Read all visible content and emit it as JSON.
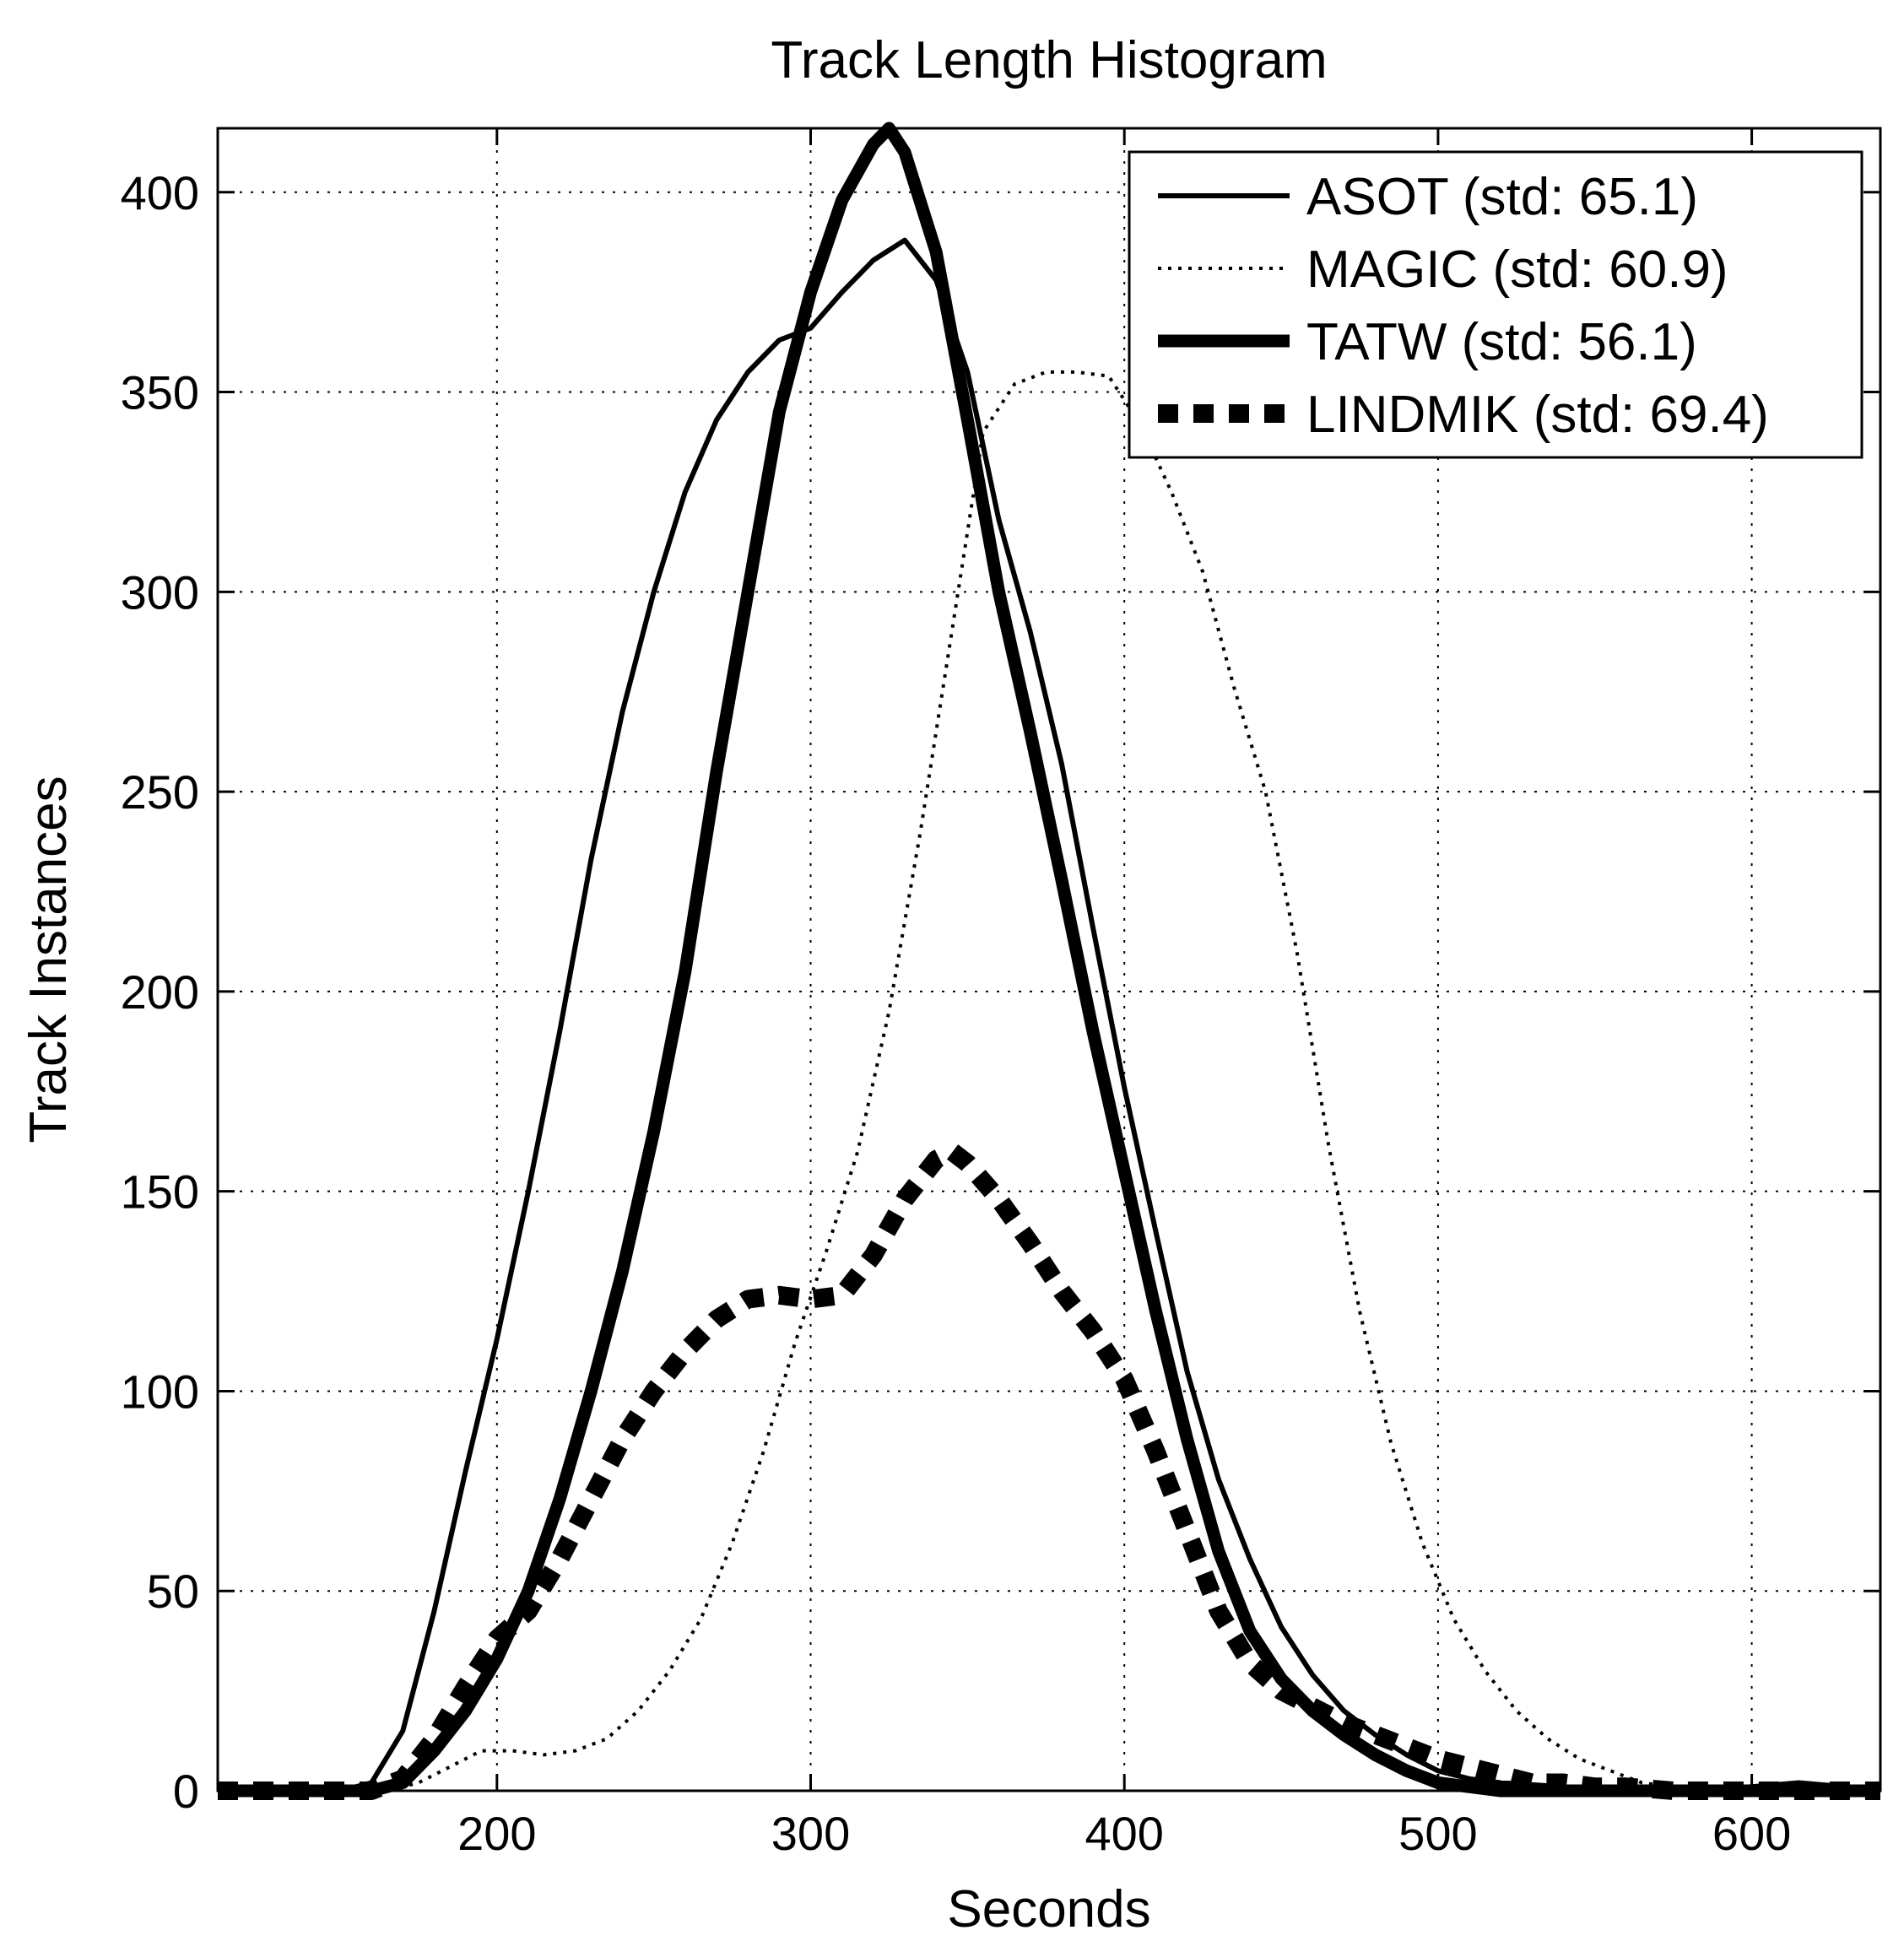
{
  "chart_data": {
    "type": "line",
    "title": "Track Length Histogram",
    "xlabel": "Seconds",
    "ylabel": "Track Instances",
    "xlim": [
      111,
      641
    ],
    "ylim": [
      0,
      416
    ],
    "xticks": [
      200,
      300,
      400,
      500,
      600
    ],
    "yticks": [
      0,
      50,
      100,
      150,
      200,
      250,
      300,
      350,
      400
    ],
    "grid": true,
    "legend_position": "top-right",
    "series": [
      {
        "name": "ASOT (std: 65.1)",
        "style": "solid-thin",
        "x": [
          111,
          150,
          160,
          170,
          180,
          190,
          200,
          210,
          220,
          230,
          240,
          250,
          260,
          270,
          280,
          290,
          300,
          310,
          320,
          330,
          340,
          350,
          360,
          370,
          380,
          390,
          400,
          410,
          420,
          430,
          440,
          450,
          460,
          470,
          480,
          490,
          500,
          510,
          520,
          540,
          560,
          580,
          600,
          615,
          630,
          641
        ],
        "y": [
          0,
          0,
          2,
          15,
          45,
          80,
          113,
          150,
          190,
          233,
          270,
          300,
          325,
          343,
          355,
          363,
          366,
          375,
          383,
          388,
          378,
          355,
          318,
          290,
          257,
          216,
          176,
          140,
          105,
          78,
          58,
          41,
          29,
          20,
          14,
          9,
          5,
          3,
          2,
          1,
          0,
          0,
          1,
          2,
          1,
          0
        ]
      },
      {
        "name": "MAGIC (std: 60.9)",
        "style": "dotted",
        "x": [
          111,
          165,
          175,
          185,
          195,
          205,
          215,
          225,
          235,
          245,
          255,
          265,
          275,
          285,
          295,
          305,
          315,
          325,
          335,
          345,
          355,
          365,
          375,
          385,
          395,
          405,
          415,
          425,
          435,
          445,
          455,
          465,
          475,
          485,
          495,
          505,
          515,
          525,
          535,
          545,
          555,
          565,
          575,
          585,
          600,
          641
        ],
        "y": [
          0,
          0,
          2,
          6,
          10,
          10,
          9,
          10,
          13,
          20,
          30,
          43,
          62,
          85,
          112,
          135,
          160,
          195,
          240,
          290,
          340,
          352,
          355,
          355,
          354,
          342,
          325,
          305,
          276,
          250,
          210,
          162,
          120,
          87,
          62,
          43,
          30,
          20,
          13,
          8,
          5,
          2,
          1,
          0,
          0,
          0
        ]
      },
      {
        "name": "TATW (std: 56.1)",
        "style": "solid-thick",
        "x": [
          111,
          160,
          170,
          180,
          190,
          200,
          210,
          220,
          230,
          240,
          250,
          260,
          270,
          280,
          290,
          300,
          310,
          320,
          325,
          330,
          340,
          350,
          360,
          370,
          380,
          390,
          400,
          410,
          420,
          430,
          440,
          450,
          460,
          470,
          480,
          490,
          500,
          510,
          520,
          530,
          641
        ],
        "y": [
          0,
          0,
          2,
          10,
          20,
          33,
          50,
          73,
          100,
          130,
          165,
          205,
          255,
          300,
          345,
          375,
          398,
          412,
          416,
          410,
          385,
          343,
          300,
          265,
          228,
          190,
          155,
          120,
          88,
          60,
          40,
          28,
          20,
          14,
          9,
          5,
          2,
          1,
          0,
          0,
          0
        ]
      },
      {
        "name": "LINDMIK (std: 69.4)",
        "style": "dashed-thick",
        "x": [
          111,
          160,
          170,
          180,
          190,
          200,
          210,
          220,
          230,
          240,
          250,
          260,
          270,
          280,
          290,
          300,
          310,
          320,
          330,
          340,
          345,
          350,
          360,
          370,
          380,
          390,
          400,
          410,
          420,
          430,
          440,
          450,
          460,
          470,
          480,
          490,
          500,
          510,
          520,
          530,
          540,
          550,
          560,
          575,
          641
        ],
        "y": [
          0,
          0,
          3,
          13,
          26,
          38,
          45,
          58,
          73,
          88,
          100,
          110,
          118,
          123,
          124,
          123,
          124,
          134,
          148,
          158,
          160,
          157,
          148,
          137,
          125,
          115,
          103,
          85,
          65,
          45,
          32,
          25,
          21,
          17,
          14,
          11,
          8,
          6,
          4,
          2,
          2,
          1,
          1,
          0,
          0
        ]
      }
    ]
  }
}
